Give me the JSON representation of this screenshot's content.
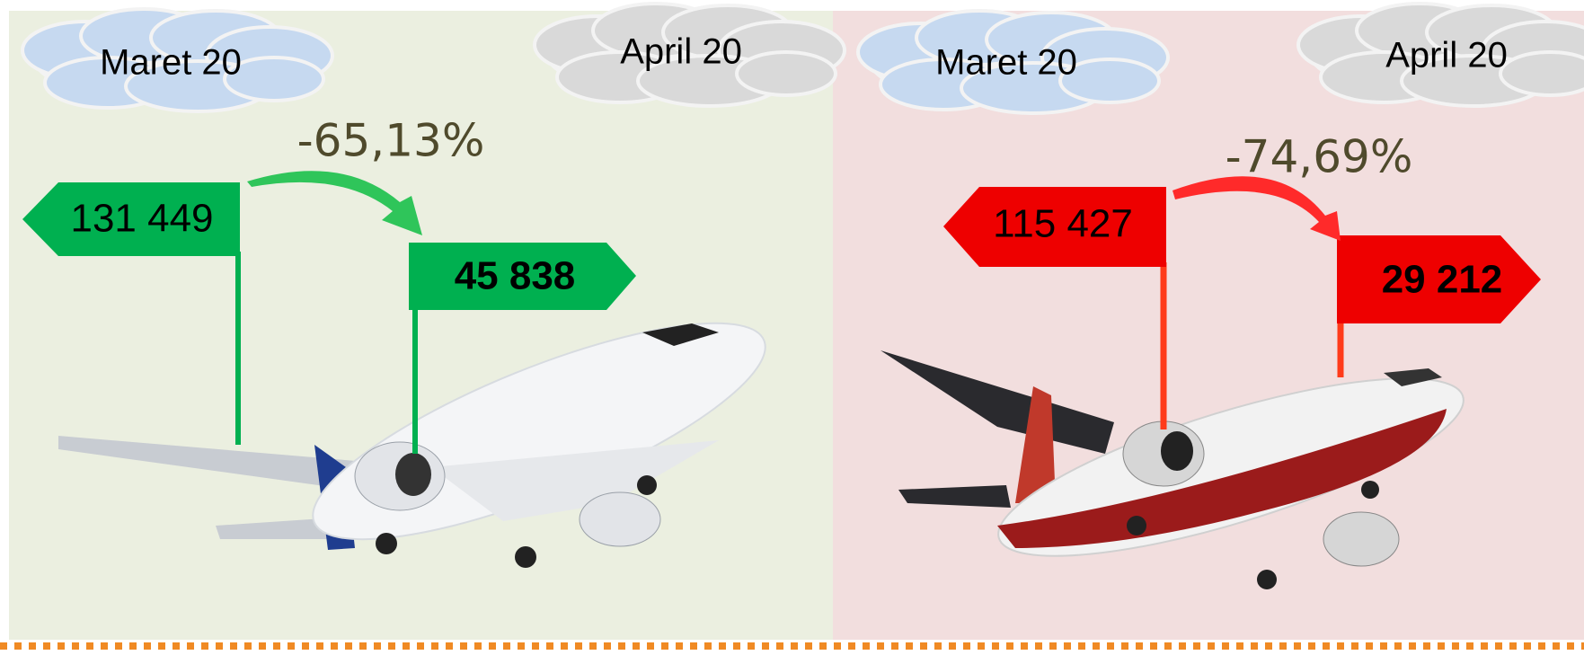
{
  "panels": [
    {
      "month_1": "Maret 20",
      "month_2": "April 20",
      "change": "-65,13%",
      "value_1": "131 449",
      "value_2": "45 838"
    },
    {
      "month_1": "Maret 20",
      "month_2": "April 20",
      "change": "-74,69%",
      "value_1": "115 427",
      "value_2": "29 212"
    }
  ]
}
